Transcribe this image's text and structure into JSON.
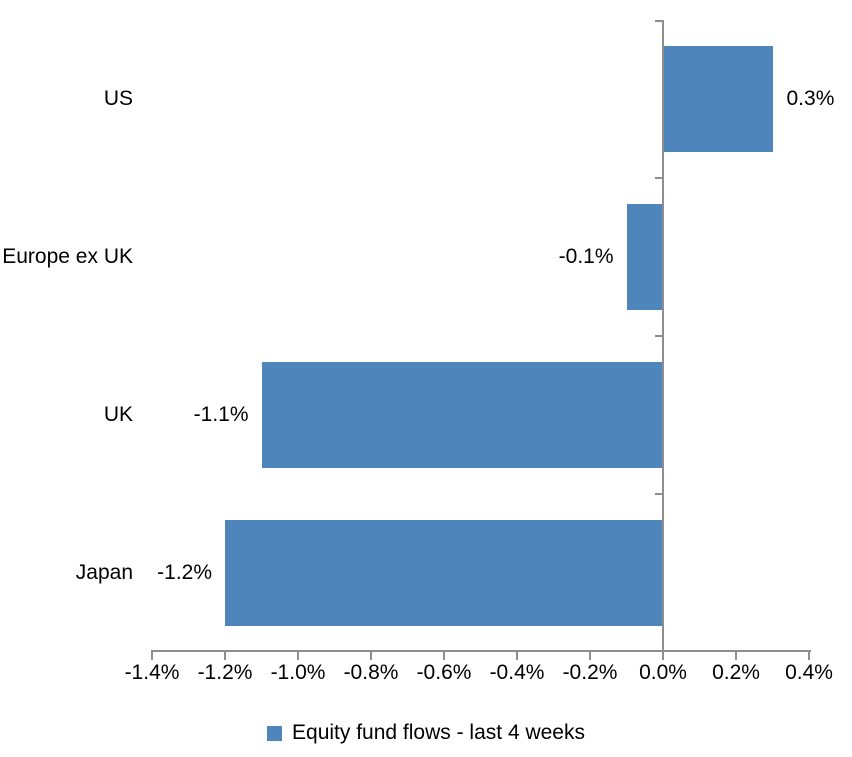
{
  "chart_data": {
    "type": "bar",
    "orientation": "horizontal",
    "title": "",
    "xlabel": "",
    "ylabel": "",
    "units": "%",
    "categories": [
      "US",
      "Europe ex UK",
      "UK",
      "Japan"
    ],
    "values": [
      0.3,
      -0.1,
      -1.1,
      -1.2
    ],
    "value_labels": [
      "0.3%",
      "-0.1%",
      "-1.1%",
      "-1.2%"
    ],
    "series": [
      {
        "name": "Equity fund flows - last 4 weeks",
        "values": [
          0.3,
          -0.1,
          -1.1,
          -1.2
        ]
      }
    ],
    "xlim": [
      -1.4,
      0.4
    ],
    "x_ticks": [
      -1.4,
      -1.2,
      -1.0,
      -0.8,
      -0.6,
      -0.4,
      -0.2,
      0.0,
      0.2,
      0.4
    ],
    "x_tick_labels": [
      "-1.4%",
      "-1.2%",
      "-1.0%",
      "-0.8%",
      "-0.6%",
      "-0.4%",
      "-0.2%",
      "0.0%",
      "0.2%",
      "0.4%"
    ],
    "grid": false,
    "legend_position": "bottom",
    "legend_label": "Equity fund flows - last 4 weeks",
    "bar_color": "#4E85BA",
    "axis_color": "#8E8E8E",
    "text_color": "#000000"
  }
}
